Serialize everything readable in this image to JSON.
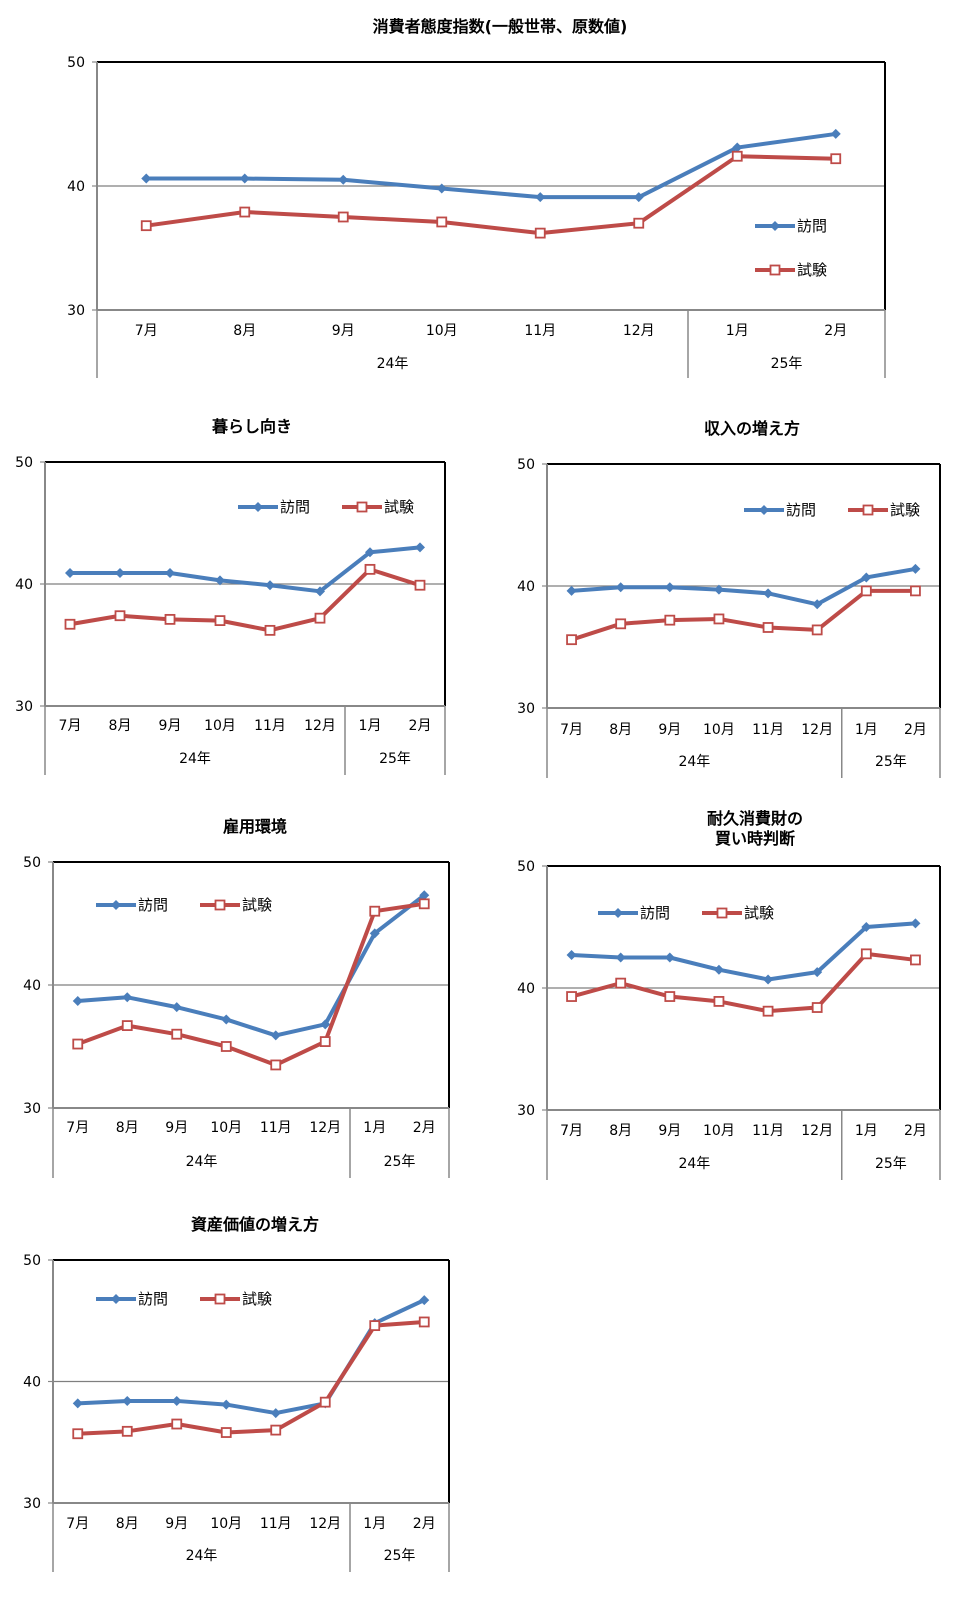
{
  "chart_data": [
    {
      "type": "line",
      "title": "消費者態度指数(一般世帯、原数値)",
      "categories": [
        "7月",
        "8月",
        "9月",
        "10月",
        "11月",
        "12月",
        "1月",
        "2月"
      ],
      "groups": [
        {
          "label": "24年",
          "count": 6
        },
        {
          "label": "25年",
          "count": 2
        }
      ],
      "ylim": [
        30,
        50
      ],
      "yticks": [
        "30",
        "40",
        "50"
      ],
      "grid": "y=40 only",
      "legend": "right",
      "series": [
        {
          "name": "訪問",
          "values": [
            40.6,
            40.6,
            40.5,
            39.8,
            39.1,
            39.1,
            43.1,
            44.2
          ]
        },
        {
          "name": "試験",
          "values": [
            36.8,
            37.9,
            37.5,
            37.1,
            36.2,
            37.0,
            42.4,
            42.2
          ]
        }
      ]
    },
    {
      "type": "line",
      "title": "暮らし向き",
      "categories": [
        "7月",
        "8月",
        "9月",
        "10月",
        "11月",
        "12月",
        "1月",
        "2月"
      ],
      "groups": [
        {
          "label": "24年",
          "count": 6
        },
        {
          "label": "25年",
          "count": 2
        }
      ],
      "ylim": [
        30,
        50
      ],
      "yticks": [
        "30",
        "40",
        "50"
      ],
      "legend": "top-right",
      "series": [
        {
          "name": "訪問",
          "values": [
            40.9,
            40.9,
            40.9,
            40.3,
            39.9,
            39.4,
            42.6,
            43.0
          ]
        },
        {
          "name": "試験",
          "values": [
            36.7,
            37.4,
            37.1,
            37.0,
            36.2,
            37.2,
            41.2,
            39.9
          ]
        }
      ]
    },
    {
      "type": "line",
      "title": "収入の増え方",
      "categories": [
        "7月",
        "8月",
        "9月",
        "10月",
        "11月",
        "12月",
        "1月",
        "2月"
      ],
      "groups": [
        {
          "label": "24年",
          "count": 6
        },
        {
          "label": "25年",
          "count": 2
        }
      ],
      "ylim": [
        30,
        50
      ],
      "yticks": [
        "30",
        "40",
        "50"
      ],
      "legend": "top-right",
      "series": [
        {
          "name": "訪問",
          "values": [
            39.6,
            39.9,
            39.9,
            39.7,
            39.4,
            38.5,
            40.7,
            41.4
          ]
        },
        {
          "name": "試験",
          "values": [
            35.6,
            36.9,
            37.2,
            37.3,
            36.6,
            36.4,
            39.6,
            39.6
          ]
        }
      ]
    },
    {
      "type": "line",
      "title": "雇用環境",
      "categories": [
        "7月",
        "8月",
        "9月",
        "10月",
        "11月",
        "12月",
        "1月",
        "2月"
      ],
      "groups": [
        {
          "label": "24年",
          "count": 6
        },
        {
          "label": "25年",
          "count": 2
        }
      ],
      "ylim": [
        30,
        50
      ],
      "yticks": [
        "30",
        "40",
        "50"
      ],
      "legend": "top-left",
      "series": [
        {
          "name": "訪問",
          "values": [
            38.7,
            39.0,
            38.2,
            37.2,
            35.9,
            36.8,
            44.2,
            47.3
          ]
        },
        {
          "name": "試験",
          "values": [
            35.2,
            36.7,
            36.0,
            35.0,
            33.5,
            35.4,
            46.0,
            46.6
          ]
        }
      ]
    },
    {
      "type": "line",
      "title": "耐久消費財の\n買い時判断",
      "title_lines": [
        "耐久消費財の",
        "買い時判断"
      ],
      "categories": [
        "7月",
        "8月",
        "9月",
        "10月",
        "11月",
        "12月",
        "1月",
        "2月"
      ],
      "groups": [
        {
          "label": "24年",
          "count": 6
        },
        {
          "label": "25年",
          "count": 2
        }
      ],
      "ylim": [
        30,
        50
      ],
      "yticks": [
        "30",
        "40",
        "50"
      ],
      "legend": "top-left",
      "series": [
        {
          "name": "訪問",
          "values": [
            42.7,
            42.5,
            42.5,
            41.5,
            40.7,
            41.3,
            45.0,
            45.3
          ]
        },
        {
          "name": "試験",
          "values": [
            39.3,
            40.4,
            39.3,
            38.9,
            38.1,
            38.4,
            42.8,
            42.3
          ]
        }
      ]
    },
    {
      "type": "line",
      "title": "資産価値の増え方",
      "categories": [
        "7月",
        "8月",
        "9月",
        "10月",
        "11月",
        "12月",
        "1月",
        "2月"
      ],
      "groups": [
        {
          "label": "24年",
          "count": 6
        },
        {
          "label": "25年",
          "count": 2
        }
      ],
      "ylim": [
        30,
        50
      ],
      "yticks": [
        "30",
        "40",
        "50"
      ],
      "legend": "top-left",
      "series": [
        {
          "name": "訪問",
          "values": [
            38.2,
            38.4,
            38.4,
            38.1,
            37.4,
            38.2,
            44.8,
            46.7
          ]
        },
        {
          "name": "試験",
          "values": [
            35.7,
            35.9,
            36.5,
            35.8,
            36.0,
            38.3,
            44.6,
            44.9
          ]
        }
      ]
    }
  ],
  "colors": {
    "visit": "#4a7ebb",
    "test": "#be4b48"
  }
}
